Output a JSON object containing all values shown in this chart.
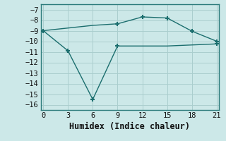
{
  "line1_x": [
    0,
    3,
    6,
    9,
    12,
    15,
    18,
    21
  ],
  "line1_y": [
    -9.0,
    -8.75,
    -8.5,
    -8.35,
    -7.7,
    -7.8,
    -9.05,
    -10.0
  ],
  "line1_markers_x": [
    9,
    12,
    15,
    18,
    21
  ],
  "line1_markers_y": [
    -8.35,
    -7.7,
    -7.8,
    -9.05,
    -10.0
  ],
  "line2_x": [
    0,
    3,
    6,
    9,
    12,
    15,
    18,
    21
  ],
  "line2_y": [
    -9.0,
    -10.9,
    -15.5,
    -10.45,
    -10.45,
    -10.45,
    -10.35,
    -10.25
  ],
  "line2_markers_x": [
    0,
    3,
    6,
    9,
    21
  ],
  "line2_markers_y": [
    -9.0,
    -10.9,
    -15.5,
    -10.45,
    -10.25
  ],
  "line_color": "#1b6e6e",
  "background_color": "#cce8e8",
  "grid_color": "#aacece",
  "xlabel": "Humidex (Indice chaleur)",
  "ylim": [
    -16.5,
    -6.5
  ],
  "xlim": [
    -0.3,
    21.3
  ],
  "xticks": [
    0,
    3,
    6,
    9,
    12,
    15,
    18,
    21
  ],
  "yticks": [
    -7,
    -8,
    -9,
    -10,
    -11,
    -12,
    -13,
    -14,
    -15,
    -16
  ],
  "marker": "+",
  "markersize": 5,
  "markeredgewidth": 1.5,
  "linewidth": 1.0,
  "xlabel_fontsize": 8.5,
  "tick_fontsize": 7.5
}
